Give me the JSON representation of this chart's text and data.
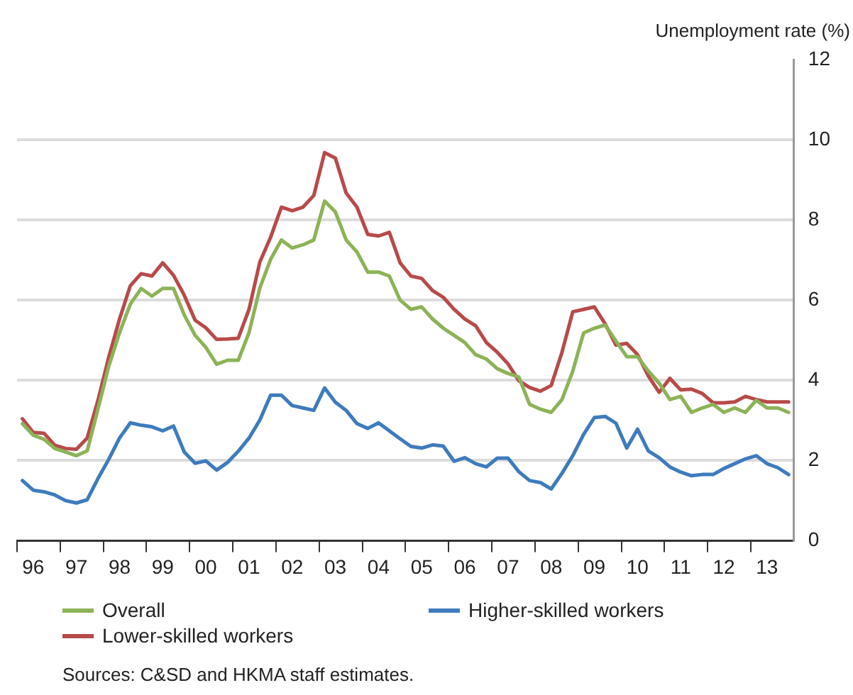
{
  "chart_data": {
    "type": "line",
    "ylabel": "Unemployment rate (%)",
    "categories": [
      null,
      "96",
      null,
      null,
      null,
      "97",
      null,
      null,
      null,
      "98",
      null,
      null,
      null,
      "99",
      null,
      null,
      null,
      "00",
      null,
      null,
      null,
      "01",
      null,
      null,
      null,
      "02",
      null,
      null,
      null,
      "03",
      null,
      null,
      null,
      "04",
      null,
      null,
      null,
      "05",
      null,
      null,
      null,
      "06",
      null,
      null,
      null,
      "07",
      null,
      null,
      null,
      "08",
      null,
      null,
      null,
      "09",
      null,
      null,
      null,
      "10",
      null,
      null,
      null,
      "11",
      null,
      null,
      null,
      "12",
      null,
      null,
      null,
      "13",
      null,
      null
    ],
    "series": [
      {
        "name": "Overall",
        "color": "#8cb357",
        "values": [
          2.92,
          2.63,
          2.53,
          2.3,
          2.21,
          2.12,
          2.24,
          3.28,
          4.35,
          5.19,
          5.9,
          6.29,
          6.1,
          6.29,
          6.29,
          5.63,
          5.12,
          4.82,
          4.4,
          4.5,
          4.5,
          5.19,
          6.3,
          7.02,
          7.5,
          7.3,
          7.38,
          7.5,
          8.47,
          8.2,
          7.5,
          7.2,
          6.7,
          6.7,
          6.6,
          6.0,
          5.77,
          5.83,
          5.53,
          5.3,
          5.12,
          4.94,
          4.64,
          4.53,
          4.29,
          4.17,
          4.08,
          3.4,
          3.28,
          3.2,
          3.52,
          4.23,
          5.18,
          5.3,
          5.38,
          4.98,
          4.59,
          4.59,
          4.23,
          3.93,
          3.52,
          3.6,
          3.2,
          3.31,
          3.4,
          3.2,
          3.31,
          3.2,
          3.5,
          3.31,
          3.31,
          3.2
        ]
      },
      {
        "name": "Lower-skilled workers",
        "color": "#b84a4a",
        "values": [
          3.04,
          2.7,
          2.68,
          2.38,
          2.3,
          2.28,
          2.56,
          3.5,
          4.58,
          5.53,
          6.36,
          6.66,
          6.6,
          6.93,
          6.62,
          6.12,
          5.5,
          5.31,
          5.02,
          5.03,
          5.05,
          5.77,
          6.95,
          7.57,
          8.32,
          8.23,
          8.32,
          8.61,
          9.68,
          9.54,
          8.67,
          8.32,
          7.64,
          7.6,
          7.69,
          6.93,
          6.6,
          6.54,
          6.24,
          6.07,
          5.77,
          5.53,
          5.36,
          4.94,
          4.7,
          4.41,
          3.99,
          3.82,
          3.73,
          3.87,
          4.7,
          5.71,
          5.77,
          5.83,
          5.41,
          4.88,
          4.92,
          4.64,
          4.11,
          3.7,
          4.05,
          3.76,
          3.78,
          3.67,
          3.44,
          3.44,
          3.46,
          3.6,
          3.52,
          3.46,
          3.46,
          3.46
        ]
      },
      {
        "name": "Higher-skilled workers",
        "color": "#3f7bbd",
        "values": [
          1.5,
          1.26,
          1.22,
          1.14,
          1.0,
          0.94,
          1.02,
          1.55,
          2.03,
          2.56,
          2.94,
          2.88,
          2.84,
          2.74,
          2.86,
          2.21,
          1.93,
          1.99,
          1.76,
          1.95,
          2.23,
          2.56,
          3.01,
          3.63,
          3.63,
          3.37,
          3.31,
          3.25,
          3.81,
          3.45,
          3.25,
          2.92,
          2.8,
          2.94,
          2.74,
          2.54,
          2.35,
          2.31,
          2.39,
          2.36,
          1.98,
          2.07,
          1.92,
          1.84,
          2.06,
          2.06,
          1.72,
          1.5,
          1.45,
          1.29,
          1.68,
          2.12,
          2.65,
          3.07,
          3.1,
          2.93,
          2.31,
          2.78,
          2.24,
          2.07,
          1.84,
          1.71,
          1.62,
          1.65,
          1.65,
          1.8,
          1.92,
          2.04,
          2.12,
          1.92,
          1.82,
          1.65
        ]
      }
    ],
    "ylim": [
      0,
      12
    ],
    "yticks": [
      0,
      2,
      4,
      6,
      8,
      10,
      12
    ],
    "grid": "y",
    "legend": "bottom",
    "marker": "none",
    "line_style": "solid",
    "annotations": [
      "Sources: C&SD and HKMA staff estimates."
    ]
  }
}
